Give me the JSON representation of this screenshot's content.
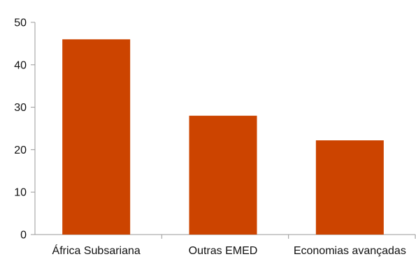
{
  "chart_data": {
    "type": "bar",
    "categories": [
      "África Subsariana",
      "Outras EMED",
      "Economias avançadas"
    ],
    "series": [
      {
        "values": [
          46,
          28,
          22.2
        ],
        "color": "#cc4400"
      }
    ],
    "title": "",
    "xlabel": "",
    "ylabel": "",
    "ylim": [
      0,
      50
    ],
    "yticks": [
      0,
      10,
      20,
      30,
      40,
      50
    ],
    "grid": false,
    "legend": "none"
  }
}
